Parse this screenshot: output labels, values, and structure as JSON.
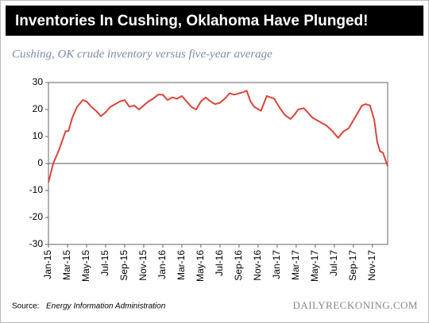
{
  "chart_data": {
    "type": "line",
    "title": "Inventories In Cushing, Oklahoma Have Plunged!",
    "subtitle": "Cushing, OK crude inventory versus five-year average",
    "source_label": "Source:",
    "source": "Energy Information Administration",
    "brand": "DAILYRECKONING.COM",
    "x": [
      0,
      0.5,
      1.1,
      1.8,
      2.1,
      2.5,
      3,
      3.6,
      4,
      4.5,
      5,
      5.5,
      6,
      6.5,
      7,
      7.5,
      8,
      8.5,
      9,
      9.5,
      10,
      10.5,
      11,
      11.5,
      12,
      12.5,
      13,
      13.5,
      14,
      14.5,
      15,
      15.5,
      16,
      16.5,
      17,
      17.5,
      18,
      18.5,
      19,
      19.5,
      20,
      20.5,
      20.8,
      21.2,
      21.6,
      22.3,
      22.9,
      23.3,
      23.7,
      24.2,
      24.8,
      25.4,
      25.8,
      26.2,
      26.8,
      27.2,
      27.7,
      28.2,
      28.7,
      29.2,
      29.8,
      30.4,
      31,
      31.5,
      32,
      32.5,
      32.9,
      33.3,
      33.75,
      34.2,
      34.5,
      34.8,
      35.1,
      35.6
    ],
    "series": [
      {
        "name": "Cushing, OK crude inventory vs five-year average",
        "color": "#d9453a",
        "values": [
          -7,
          0,
          5,
          12,
          12,
          17,
          21,
          23.5,
          23,
          21,
          19.5,
          17.5,
          19,
          21,
          22,
          23,
          23.5,
          21,
          21.5,
          20,
          21.5,
          23,
          24,
          25.5,
          25.5,
          23.5,
          24.5,
          24,
          25,
          23,
          21,
          20,
          23,
          24.5,
          23,
          22,
          22.5,
          24,
          26,
          25.5,
          26,
          26.5,
          27,
          23,
          21,
          19.5,
          25,
          24.5,
          24,
          21,
          18,
          16.5,
          18,
          20,
          20.5,
          19,
          17,
          16,
          15,
          14,
          12,
          9.5,
          12,
          13,
          16,
          19,
          21.5,
          22,
          21.5,
          16,
          8,
          4.5,
          4,
          -1
        ]
      }
    ],
    "xlim": [
      0,
      35.6
    ],
    "xticks": [
      {
        "value": 0,
        "label": "Jan-15"
      },
      {
        "value": 2,
        "label": "Mar-15"
      },
      {
        "value": 4,
        "label": "May-15"
      },
      {
        "value": 6,
        "label": "Jul-15"
      },
      {
        "value": 8,
        "label": "Sep-15"
      },
      {
        "value": 10,
        "label": "Nov-15"
      },
      {
        "value": 12,
        "label": "Jan-16"
      },
      {
        "value": 14,
        "label": "Mar-16"
      },
      {
        "value": 16,
        "label": "May-16"
      },
      {
        "value": 18,
        "label": "Jul-16"
      },
      {
        "value": 20,
        "label": "Sep-16"
      },
      {
        "value": 22,
        "label": "Nov-16"
      },
      {
        "value": 24,
        "label": "Jan-17"
      },
      {
        "value": 26,
        "label": "Mar-17"
      },
      {
        "value": 28,
        "label": "May-17"
      },
      {
        "value": 30,
        "label": "Jul-17"
      },
      {
        "value": 32,
        "label": "Sep-17"
      },
      {
        "value": 34,
        "label": "Nov-17"
      }
    ],
    "ylim": [
      -30,
      30
    ],
    "yticks": [
      -30,
      -20,
      -10,
      0,
      10,
      20,
      30
    ]
  }
}
